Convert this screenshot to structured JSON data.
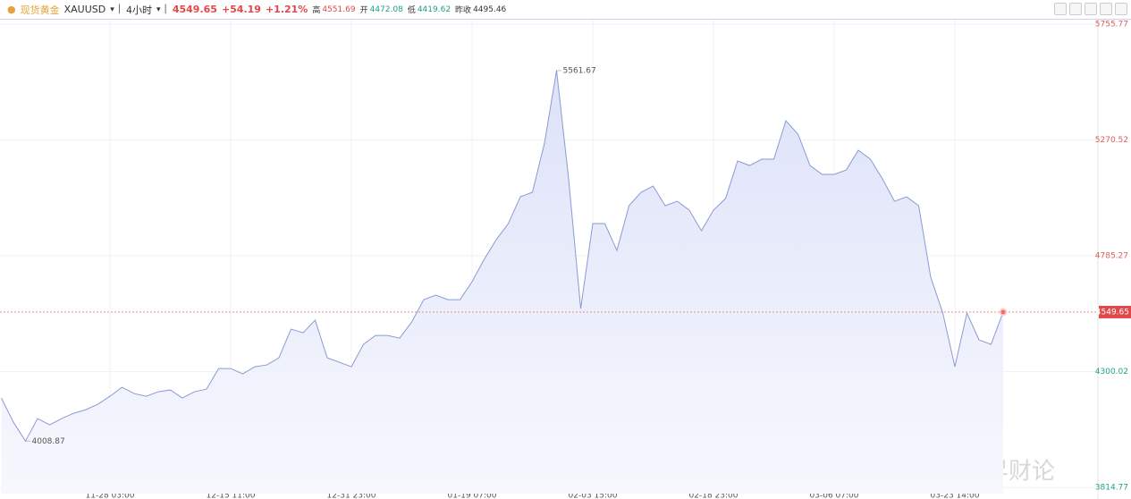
{
  "header": {
    "name": "现货黄金",
    "symbol": "XAUUSD",
    "interval": "4小时",
    "price": "4549.65",
    "change": "+54.19",
    "change_pct": "+1.21%",
    "high_label": "高",
    "high": "4551.69",
    "open_label": "开",
    "open": "4472.08",
    "low_label": "低",
    "low": "4419.62",
    "prev_label": "昨收",
    "prev": "4495.46"
  },
  "watermark": "智昇财论",
  "chart_data": {
    "type": "area",
    "color": "#8a9ad6",
    "categories": [
      null,
      null,
      null,
      null,
      null,
      null,
      null,
      null,
      null,
      "11-28 03:00",
      null,
      null,
      null,
      null,
      null,
      null,
      null,
      null,
      null,
      "12-15 11:00",
      null,
      null,
      null,
      null,
      null,
      null,
      null,
      null,
      null,
      "12-31 23:00",
      null,
      null,
      null,
      null,
      null,
      null,
      null,
      null,
      null,
      "01-19 07:00",
      null,
      null,
      null,
      null,
      null,
      null,
      null,
      null,
      null,
      "02-03 15:00",
      null,
      null,
      null,
      null,
      null,
      null,
      null,
      null,
      null,
      "02-18 23:00",
      null,
      null,
      null,
      null,
      null,
      null,
      null,
      null,
      null,
      "03-06 07:00",
      null,
      null,
      null,
      null,
      null,
      null,
      null,
      null,
      null,
      "03-23 14:00",
      null,
      null,
      null,
      null
    ],
    "values": [
      4189.6,
      4088.4,
      4008.87,
      4103.4,
      4077.1,
      4103.4,
      4125.8,
      4140.8,
      4163.3,
      4197.0,
      4234.5,
      4208.3,
      4197.0,
      4215.8,
      4223.3,
      4189.6,
      4215.8,
      4227.0,
      4313.2,
      4313.2,
      4290.7,
      4320.7,
      4328.2,
      4358.2,
      4478.1,
      4463.1,
      4515.5,
      4358.2,
      4339.4,
      4320.7,
      4414.4,
      4451.8,
      4451.8,
      4440.6,
      4508.0,
      4601.7,
      4620.5,
      4601.7,
      4601.7,
      4676.7,
      4770.3,
      4852.8,
      4920.2,
      5032.6,
      5051.4,
      5257.4,
      5561.67,
      5107.6,
      4564.2,
      4920.2,
      4920.2,
      4807.8,
      4995.2,
      5051.4,
      5077.6,
      4995.2,
      5013.9,
      4976.4,
      4890.2,
      4976.4,
      5025.1,
      5182.5,
      5163.8,
      5190.0,
      5190.0,
      5351.1,
      5294.9,
      5163.8,
      5126.3,
      5126.3,
      5145.0,
      5227.5,
      5190.0,
      5107.6,
      5013.9,
      5032.6,
      4995.2,
      4695.4,
      4545.5,
      4320.7,
      4545.5,
      4433.1,
      4414.4,
      4549.65
    ],
    "ylim": [
      3789,
      5782
    ],
    "yticks": [
      5755.77,
      5270.52,
      4785.27,
      4300.02,
      3814.77
    ],
    "ytick_colors": [
      "#e05a5a",
      "#e05a5a",
      "#e05a5a",
      "#1fa08a",
      "#1fa08a"
    ],
    "grid": true
  }
}
